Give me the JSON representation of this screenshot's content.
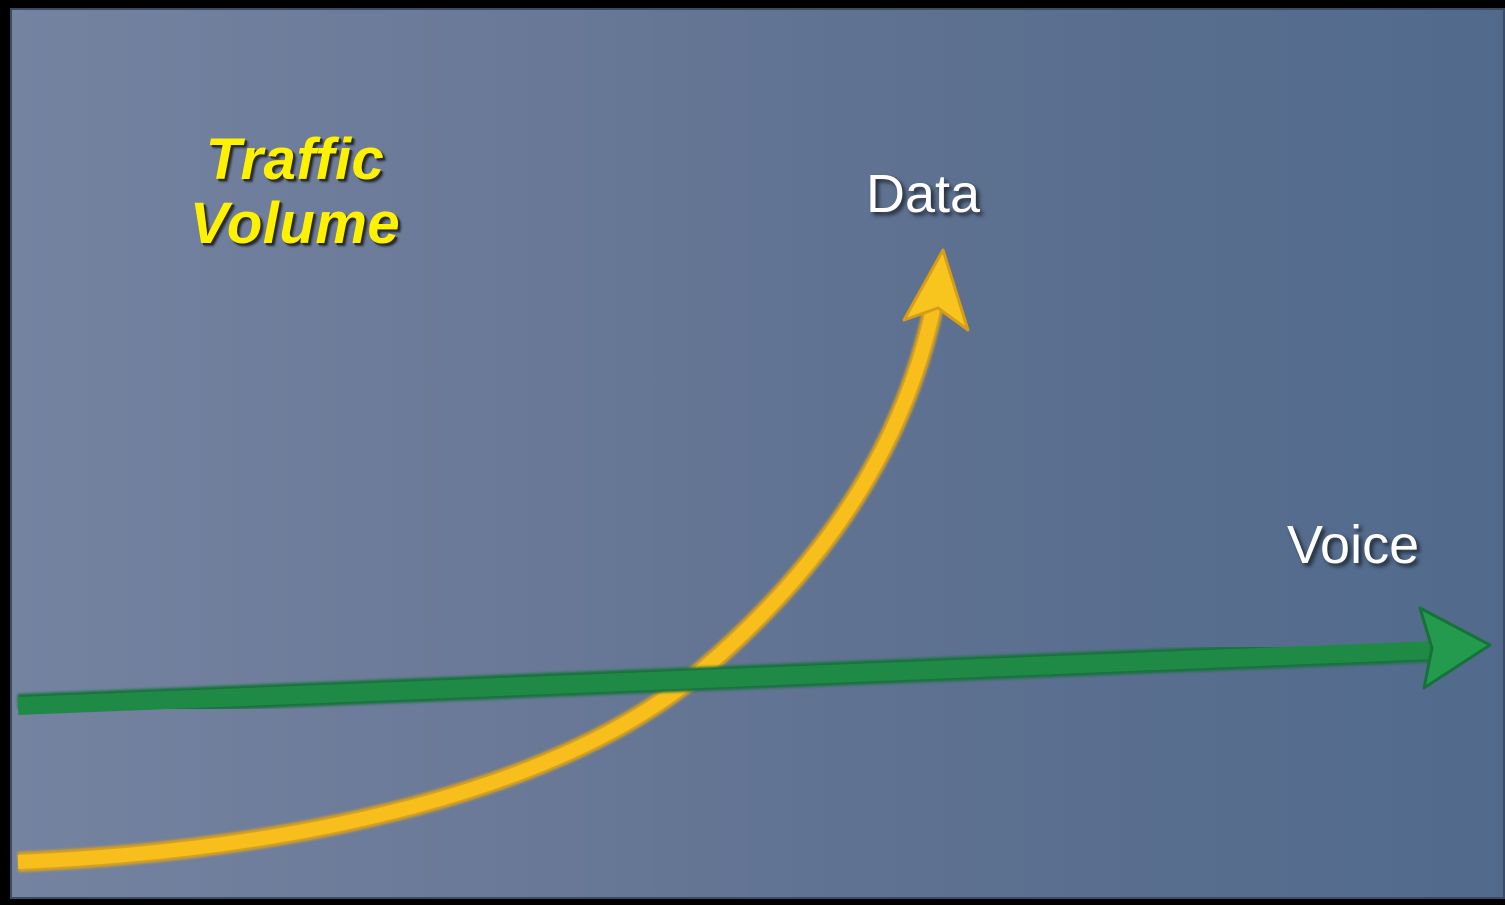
{
  "diagram": {
    "title_line1": "Traffic",
    "title_line2": "Volume",
    "series": [
      {
        "label": "Data",
        "color": "#f7be1c",
        "trend": "exponential"
      },
      {
        "label": "Voice",
        "color": "#1f8a45",
        "trend": "flat"
      }
    ]
  }
}
